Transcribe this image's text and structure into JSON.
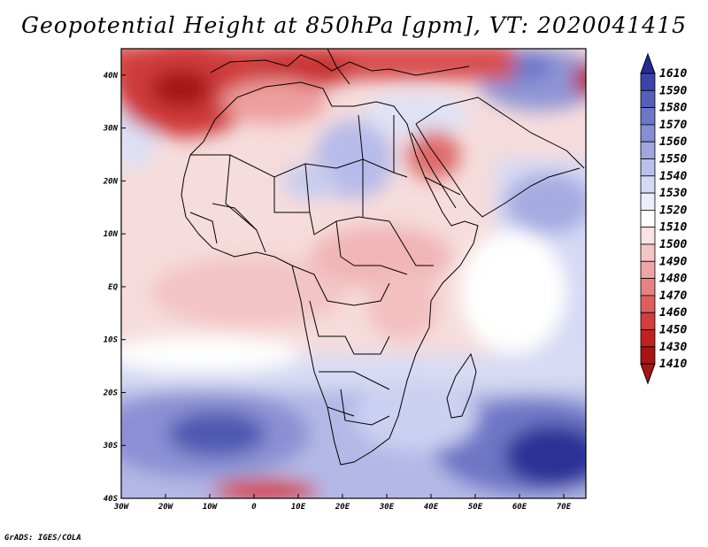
{
  "title": "Geopotential Height at 850hPa [gpm], VT: 2020041415",
  "credit": "GrADS: IGES/COLA",
  "map": {
    "lat_labels": [
      "40N",
      "30N",
      "20N",
      "10N",
      "EQ",
      "10S",
      "20S",
      "30S",
      "40S"
    ],
    "lon_labels": [
      "30W",
      "20W",
      "10W",
      "0",
      "10E",
      "20E",
      "30E",
      "40E",
      "50E",
      "60E",
      "70E"
    ],
    "lat_range": [
      -40,
      45
    ],
    "lon_range": [
      -30,
      75
    ],
    "field": "Geopotential height at 850 hPa",
    "units": "gpm",
    "valid_time": "2020041415"
  },
  "colorbar": {
    "levels": [
      "1610",
      "1590",
      "1580",
      "1570",
      "1560",
      "1550",
      "1540",
      "1530",
      "1520",
      "1510",
      "1500",
      "1490",
      "1480",
      "1470",
      "1460",
      "1450",
      "1430",
      "1410"
    ],
    "colors": [
      "#232b98",
      "#3b44a8",
      "#5560b8",
      "#6d77c8",
      "#868ed5",
      "#a0a6e0",
      "#bbc0ea",
      "#d6d9f4",
      "#eceef9",
      "#ffffff",
      "#fbe3e3",
      "#f5c5c5",
      "#eea5a5",
      "#e78282",
      "#de5e5e",
      "#d23d3d",
      "#c02222",
      "#ab1414"
    ]
  }
}
